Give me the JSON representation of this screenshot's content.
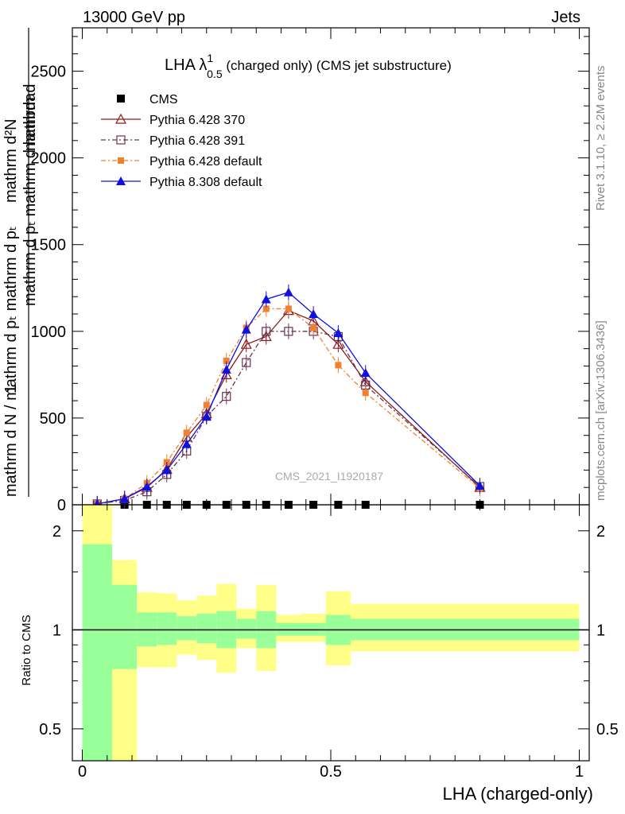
{
  "header": {
    "left": "13000 GeV pp",
    "right": "Jets"
  },
  "side_text": {
    "rivet": "Rivet 3.1.10, ≥ 2.2M events",
    "mcplots": "mcplots.cern.ch [arXiv:1306.3436]"
  },
  "plot": {
    "title_prefix": "LHA λ",
    "title_sup": "1",
    "title_sub": "0.5",
    "title_suffix": " (charged only) (CMS jet substructure)",
    "watermark": "CMS_2021_I1920187",
    "ylabel_lines": [
      "1",
      "mathrm d N / mathrm d p_T mathrm d p_T mathrm d lambda",
      "mathrm d^2N"
    ],
    "ylabel_top": "mathrm d",
    "ylabel_num": "mathrm d²N",
    "ylabel_den": "mathrm d pₜ mathrm d lambda",
    "ylabel_frac": "mathrm d N / mathrm d pₜ mathrm d pₜ",
    "ratio_ylabel": "Ratio to CMS",
    "xlabel": "LHA (charged-only)"
  },
  "chart_data": [
    {
      "type": "line",
      "x": [
        0.03,
        0.085,
        0.13,
        0.17,
        0.21,
        0.25,
        0.29,
        0.33,
        0.37,
        0.415,
        0.465,
        0.515,
        0.57,
        0.8
      ],
      "ylim": [
        0,
        2750
      ],
      "xlim": [
        -0.02,
        1.02
      ],
      "yticks": [
        0,
        500,
        1000,
        1500,
        2000,
        2500
      ],
      "ytick_labels": [
        "0",
        "500",
        "1000",
        "1500",
        "2000",
        "2500"
      ],
      "series": [
        {
          "name": "CMS",
          "color": "#000000",
          "values": [
            0,
            0,
            0,
            0,
            0,
            0,
            0,
            0,
            0,
            0,
            0,
            0,
            0,
            0
          ]
        },
        {
          "name": "Pythia 6.428 370",
          "color": "#8b1a1a",
          "values": [
            5,
            35,
            100,
            205,
            390,
            525,
            750,
            925,
            970,
            1120,
            1060,
            925,
            710,
            100
          ]
        },
        {
          "name": "Pythia 6.428 391",
          "color": "#6b3350",
          "values": [
            5,
            25,
            75,
            175,
            310,
            510,
            625,
            820,
            1000,
            1000,
            1000,
            970,
            690,
            105
          ]
        },
        {
          "name": "Pythia 6.428 default",
          "color": "#f08030",
          "values": [
            5,
            35,
            125,
            245,
            415,
            575,
            830,
            1020,
            1130,
            1130,
            1020,
            805,
            645,
            95
          ]
        },
        {
          "name": "Pythia 8.308 default",
          "color": "#1010e0",
          "values": [
            5,
            35,
            105,
            200,
            350,
            510,
            780,
            1010,
            1185,
            1225,
            1100,
            990,
            760,
            110
          ]
        }
      ]
    },
    {
      "type": "area",
      "ylabel": "Ratio to CMS",
      "xlabel": "LHA (charged-only)",
      "yscale": "log",
      "ylim": [
        0.4,
        2.4
      ],
      "yticks": [
        0.5,
        1,
        2
      ],
      "ytick_labels": [
        "0.5",
        "1",
        "2"
      ],
      "xticks": [
        0,
        0.5,
        1
      ],
      "xtick_labels": [
        "0",
        "0.5",
        "1"
      ],
      "bins": [
        0,
        0.06,
        0.11,
        0.15,
        0.19,
        0.23,
        0.27,
        0.31,
        0.35,
        0.39,
        0.44,
        0.49,
        0.54,
        0.6,
        1.0
      ],
      "green_lo": [
        0.33,
        0.76,
        0.89,
        0.9,
        0.93,
        0.91,
        0.88,
        0.94,
        0.88,
        0.96,
        0.96,
        0.9,
        0.93,
        0.93
      ],
      "green_hi": [
        1.82,
        1.37,
        1.13,
        1.13,
        1.1,
        1.12,
        1.14,
        1.08,
        1.14,
        1.05,
        1.05,
        1.11,
        1.08,
        1.08
      ],
      "yellow_lo": [
        0.2,
        0.38,
        0.77,
        0.77,
        0.84,
        0.81,
        0.74,
        0.88,
        0.75,
        0.92,
        0.92,
        0.78,
        0.86,
        0.86
      ],
      "yellow_hi": [
        2.6,
        1.63,
        1.3,
        1.29,
        1.23,
        1.27,
        1.38,
        1.16,
        1.37,
        1.11,
        1.12,
        1.31,
        1.2,
        1.2
      ]
    }
  ]
}
